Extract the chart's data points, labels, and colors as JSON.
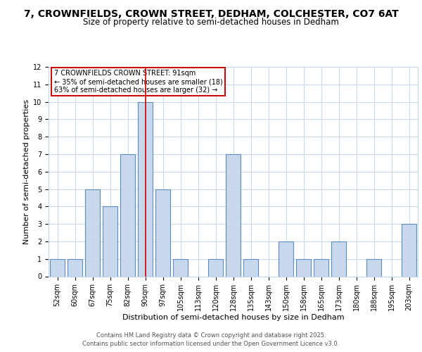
{
  "title_line1": "7, CROWNFIELDS, CROWN STREET, DEDHAM, COLCHESTER, CO7 6AT",
  "title_line2": "Size of property relative to semi-detached houses in Dedham",
  "categories": [
    "52sqm",
    "60sqm",
    "67sqm",
    "75sqm",
    "82sqm",
    "90sqm",
    "97sqm",
    "105sqm",
    "113sqm",
    "120sqm",
    "128sqm",
    "135sqm",
    "143sqm",
    "150sqm",
    "158sqm",
    "165sqm",
    "173sqm",
    "180sqm",
    "188sqm",
    "195sqm",
    "203sqm"
  ],
  "values": [
    1,
    1,
    5,
    4,
    7,
    10,
    5,
    1,
    0,
    1,
    7,
    1,
    0,
    2,
    1,
    1,
    2,
    0,
    1,
    0,
    3
  ],
  "bar_color": "#c9d9ed",
  "bar_edge_color": "#5b8bbf",
  "highlight_index": 5,
  "highlight_line_color": "#cc0000",
  "xlabel": "Distribution of semi-detached houses by size in Dedham",
  "ylabel": "Number of semi-detached properties",
  "ylim": [
    0,
    12
  ],
  "yticks": [
    0,
    1,
    2,
    3,
    4,
    5,
    6,
    7,
    8,
    9,
    10,
    11,
    12
  ],
  "annotation_text": "7 CROWNFIELDS CROWN STREET: 91sqm\n← 35% of semi-detached houses are smaller (18)\n63% of semi-detached houses are larger (32) →",
  "annotation_box_edge_color": "#cc0000",
  "footer_line1": "Contains HM Land Registry data © Crown copyright and database right 2025.",
  "footer_line2": "Contains public sector information licensed under the Open Government Licence v3.0.",
  "bg_color": "#ffffff",
  "grid_color": "#c8d8e8",
  "title_fontsize": 10,
  "subtitle_fontsize": 8.5,
  "axis_label_fontsize": 8,
  "tick_fontsize": 7,
  "annotation_fontsize": 7,
  "footer_fontsize": 6
}
